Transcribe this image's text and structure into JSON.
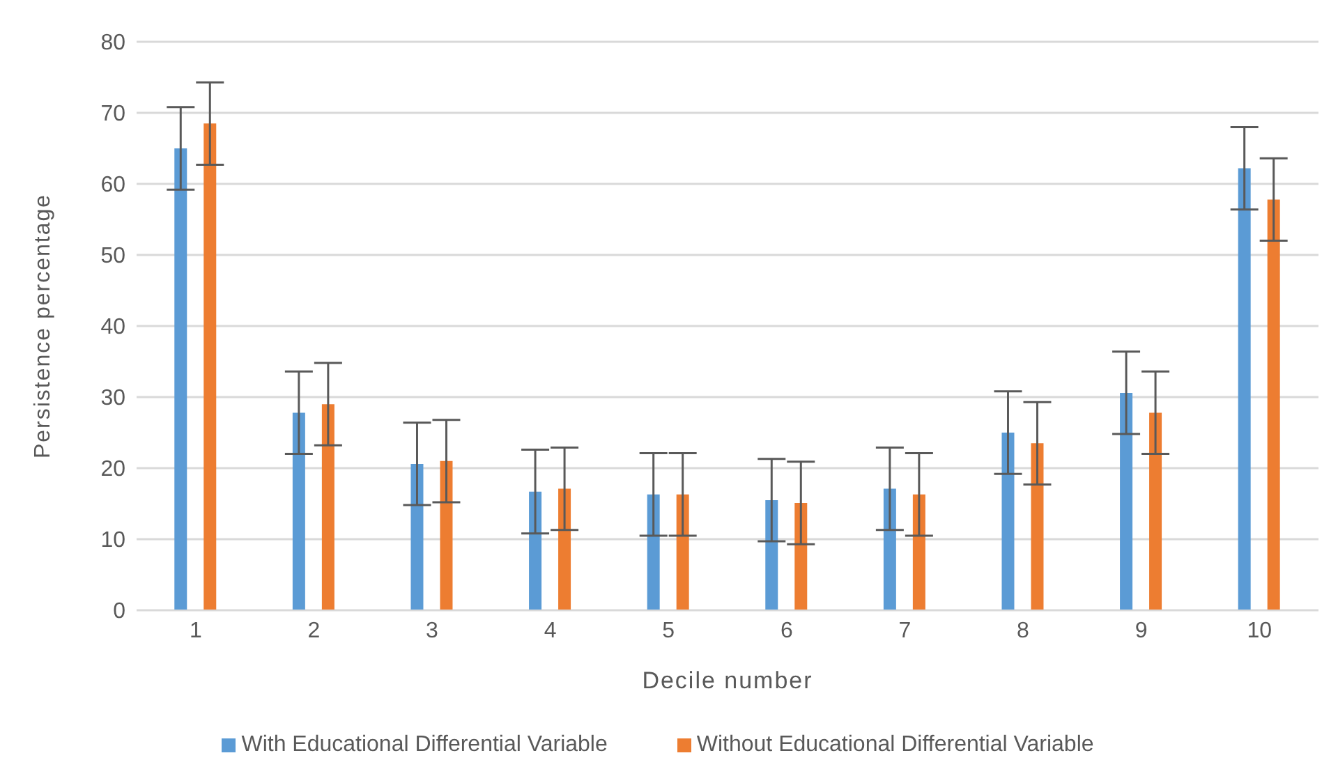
{
  "chart_data": {
    "type": "bar",
    "xlabel": "Decile number",
    "ylabel": "Persistence percentage",
    "categories": [
      "1",
      "2",
      "3",
      "4",
      "5",
      "6",
      "7",
      "8",
      "9",
      "10"
    ],
    "series": [
      {
        "name": "With Educational Differential Variable",
        "color": "#5b9bd5",
        "values": [
          65,
          27.8,
          20.6,
          16.7,
          16.3,
          15.5,
          17.1,
          25,
          30.6,
          62.2
        ],
        "errors": [
          5.8,
          5.8,
          5.8,
          5.9,
          5.8,
          5.8,
          5.8,
          5.8,
          5.8,
          5.8
        ]
      },
      {
        "name": "Without Educational Differential Variable",
        "color": "#ed7d31",
        "values": [
          68.5,
          29,
          21,
          17.1,
          16.3,
          15.1,
          16.3,
          23.5,
          27.8,
          57.8
        ],
        "errors": [
          5.8,
          5.8,
          5.8,
          5.8,
          5.8,
          5.8,
          5.8,
          5.8,
          5.8,
          5.8
        ]
      }
    ],
    "ylim": [
      0,
      80
    ],
    "yticks": [
      0,
      10,
      20,
      30,
      40,
      50,
      60,
      70,
      80
    ],
    "grid": "y",
    "legend": "bottom"
  }
}
